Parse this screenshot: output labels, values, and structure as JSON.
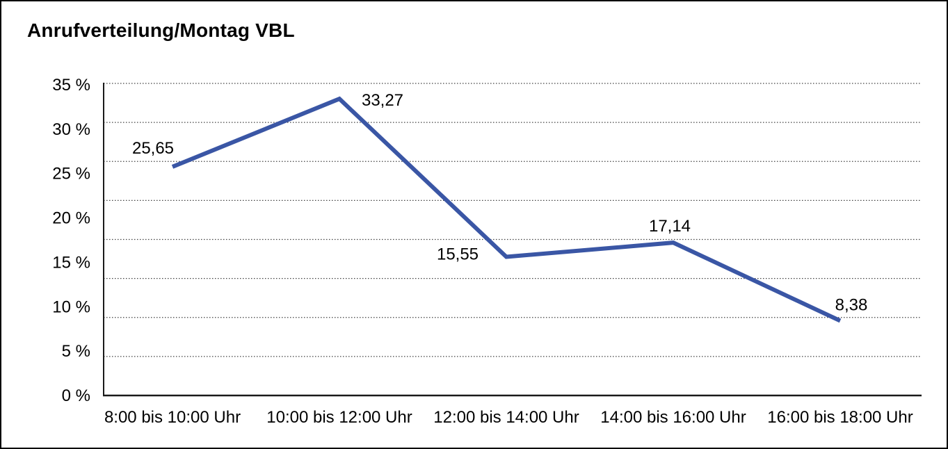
{
  "title": "Anrufverteilung/Montag VBL",
  "accent_color": "#3A56A5",
  "chart_data": {
    "type": "line",
    "title": "Anrufverteilung/Montag VBL",
    "categories": [
      "8:00 bis 10:00 Uhr",
      "10:00 bis 12:00 Uhr",
      "12:00 bis 14:00 Uhr",
      "14:00 bis 16:00 Uhr",
      "16:00 bis 18:00 Uhr"
    ],
    "values": [
      25.65,
      33.27,
      15.55,
      17.14,
      8.38
    ],
    "value_labels": [
      "25,65",
      "33,27",
      "15,55",
      "17,14",
      "8,38"
    ],
    "y_tick_labels": [
      "35 %",
      "30 %",
      "25 %",
      "20 %",
      "15 %",
      "10 %",
      "5 %",
      "0 %"
    ],
    "ylim": [
      0,
      35
    ],
    "y_tick_step": 5,
    "unit": "%",
    "decimal_separator": ",",
    "xlabel": "",
    "ylabel": "",
    "legend": "none",
    "grid": "horizontal-dotted",
    "line_color": "#3A56A5",
    "gridline_color": "#404040",
    "axis_color": "#1a1a1a"
  }
}
